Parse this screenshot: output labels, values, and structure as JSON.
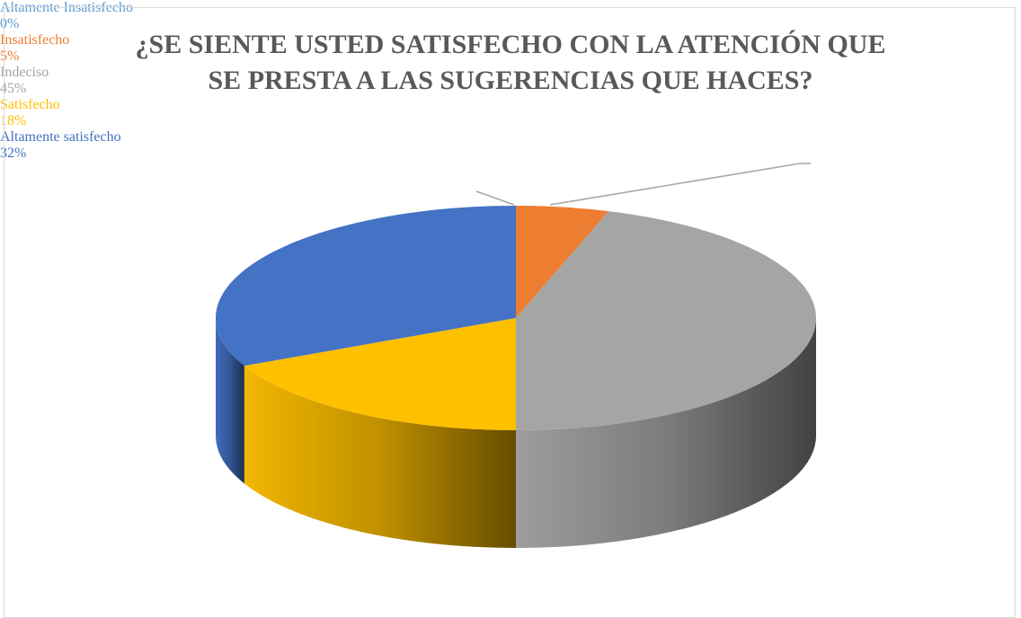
{
  "chart_data": {
    "type": "pie3d",
    "title": "¿SE SIENTE USTED SATISFECHO CON LA ATENCIÓN QUE SE PRESTA A LAS SUGERENCIAS QUE HACES?",
    "categories": [
      "Altamente Insatisfecho",
      "Insatisfecho",
      "Indeciso",
      "Satisfecho",
      "Altamente satisfecho"
    ],
    "values": [
      0,
      5,
      45,
      18,
      32
    ],
    "value_labels": [
      "0%",
      "5%",
      "45%",
      "18%",
      "32%"
    ],
    "colors": [
      "#5b9bd5",
      "#ed7d31",
      "#a5a5a5",
      "#ffc000",
      "#4472c4"
    ]
  }
}
